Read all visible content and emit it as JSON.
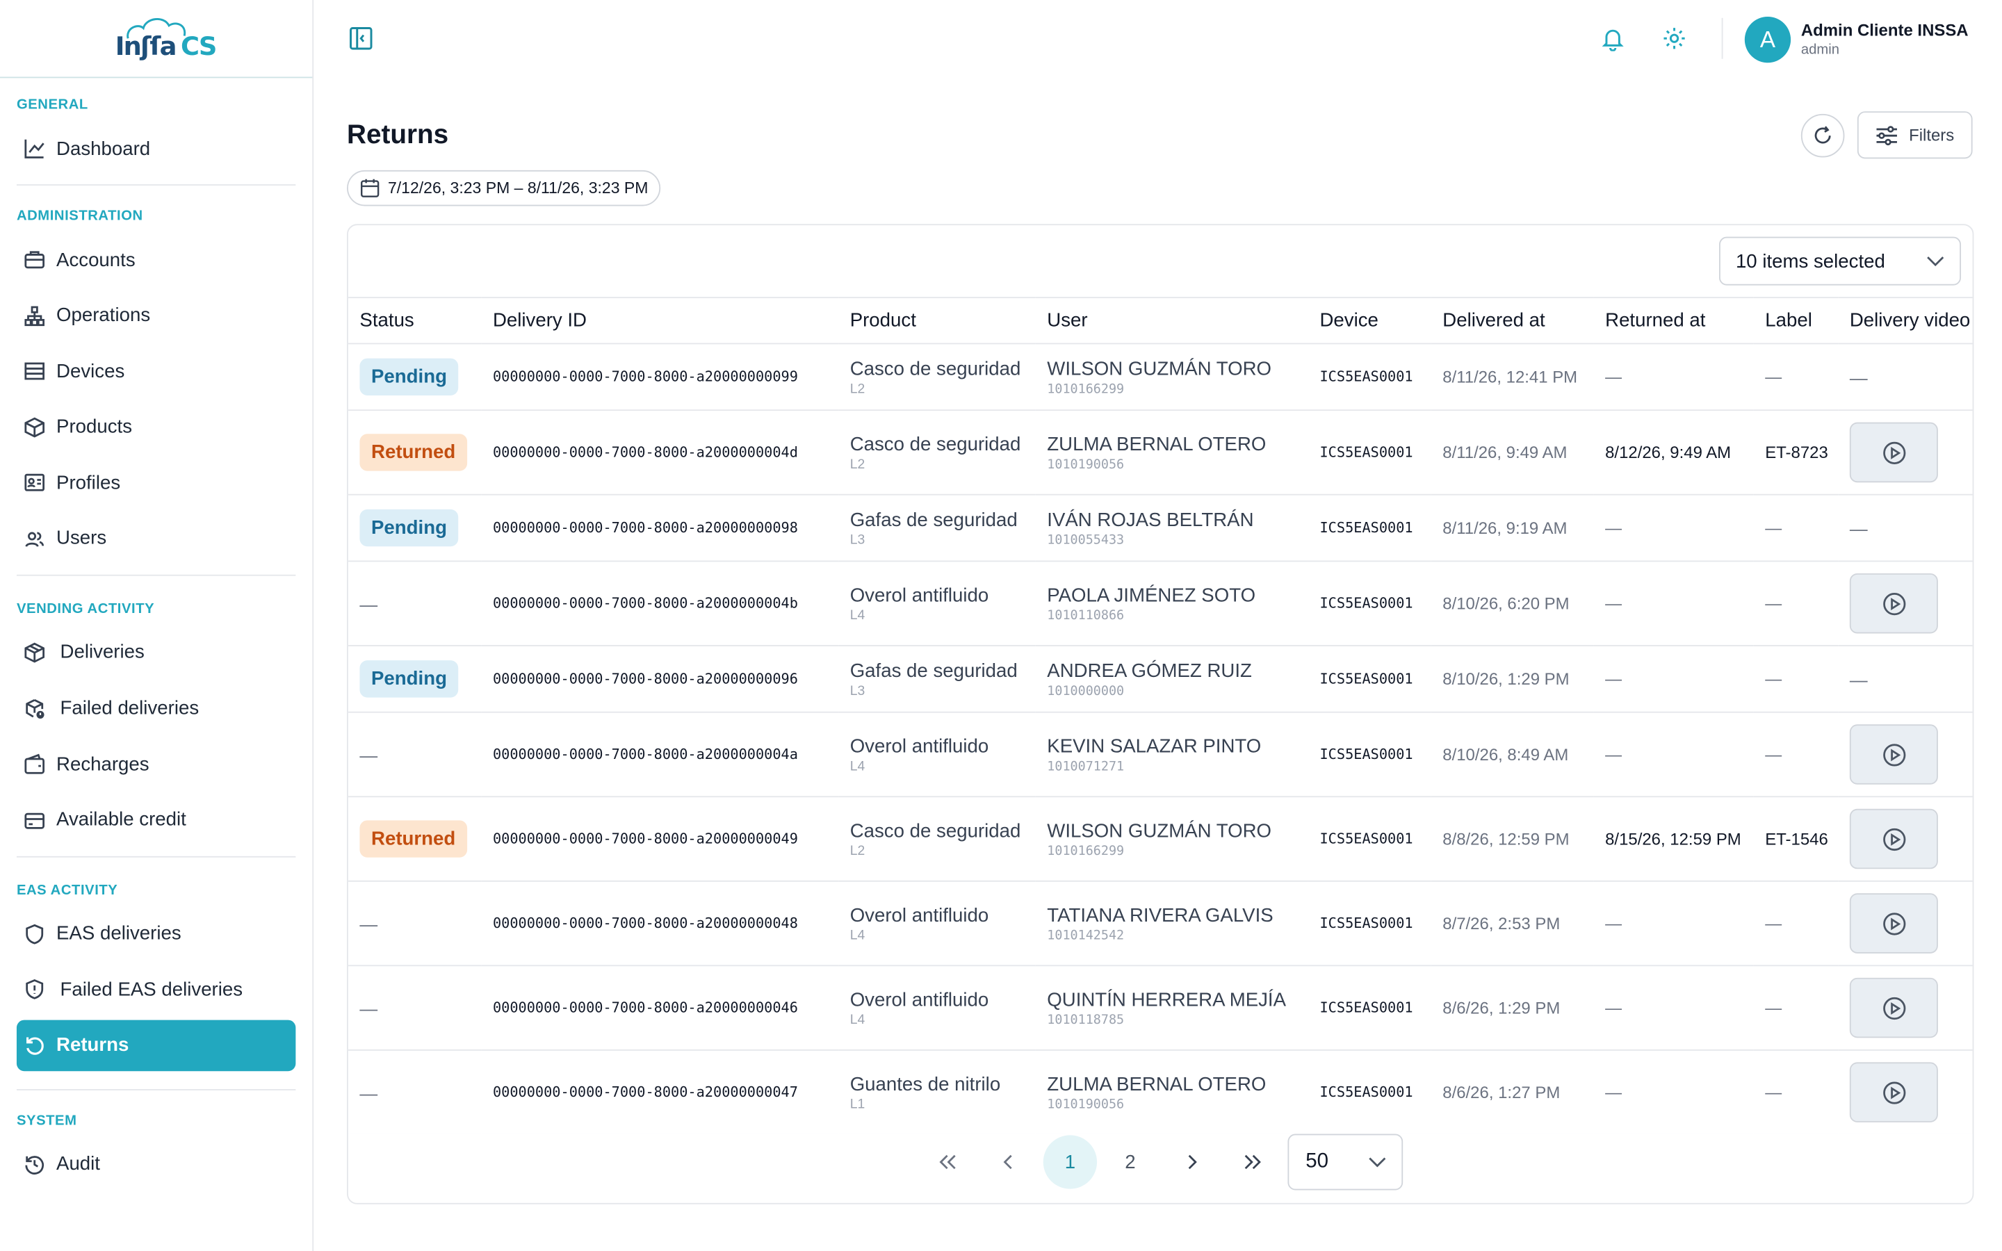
{
  "brand": {
    "logo_main": "Inʃſa",
    "logo_accent": "CS"
  },
  "sidebar": {
    "sections": [
      {
        "title": "GENERAL",
        "items": [
          {
            "label": "Dashboard",
            "icon": "chart-line-icon"
          }
        ]
      },
      {
        "title": "ADMINISTRATION",
        "items": [
          {
            "label": "Accounts",
            "icon": "briefcase-icon"
          },
          {
            "label": "Operations",
            "icon": "hierarchy-icon"
          },
          {
            "label": "Devices",
            "icon": "server-icon"
          },
          {
            "label": "Products",
            "icon": "box-icon"
          },
          {
            "label": "Profiles",
            "icon": "id-card-icon"
          },
          {
            "label": "Users",
            "icon": "users-icon"
          }
        ]
      },
      {
        "title": "VENDING ACTIVITY",
        "items": [
          {
            "label": "Deliveries",
            "icon": "package-icon"
          },
          {
            "label": "Failed deliveries",
            "icon": "package-alert-icon"
          },
          {
            "label": "Recharges",
            "icon": "wallet-icon"
          },
          {
            "label": "Available credit",
            "icon": "credit-card-icon"
          }
        ]
      },
      {
        "title": "EAS ACTIVITY",
        "items": [
          {
            "label": "EAS deliveries",
            "icon": "shield-icon"
          },
          {
            "label": "Failed EAS deliveries",
            "icon": "shield-alert-icon"
          },
          {
            "label": "Returns",
            "icon": "return-icon",
            "active": true
          }
        ]
      },
      {
        "title": "SYSTEM",
        "items": [
          {
            "label": "Audit",
            "icon": "history-icon"
          }
        ]
      }
    ]
  },
  "header": {
    "user_initial": "A",
    "user_name": "Admin Cliente INSSA",
    "user_role": "admin"
  },
  "main": {
    "title": "Returns",
    "date_range": "7/12/26, 3:23 PM – 8/11/26, 3:23 PM",
    "filters_label": "Filters",
    "columns_selected": "10 items selected",
    "columns": [
      "Status",
      "Delivery ID",
      "Product",
      "User",
      "Device",
      "Delivered at",
      "Returned at",
      "Label",
      "Delivery video"
    ],
    "rows": [
      {
        "status": "Pending",
        "status_kind": "pending",
        "id": "00000000-0000-7000-8000-a20000000099",
        "product": "Casco de seguridad",
        "size": "L2",
        "user": "WILSON GUZMÁN TORO",
        "doc": "1010166299",
        "device": "ICS5EAS0001",
        "delivered": "8/11/26, 12:41 PM",
        "returned": "—",
        "label": "—",
        "video": false,
        "video_dash": "—"
      },
      {
        "status": "Returned",
        "status_kind": "returned",
        "id": "00000000-0000-7000-8000-a2000000004d",
        "product": "Casco de seguridad",
        "size": "L2",
        "user": "ZULMA BERNAL OTERO",
        "doc": "1010190056",
        "device": "ICS5EAS0001",
        "delivered": "8/11/26, 9:49 AM",
        "returned": "8/12/26, 9:49 AM",
        "label": "ET-8723",
        "video": true
      },
      {
        "status": "Pending",
        "status_kind": "pending",
        "id": "00000000-0000-7000-8000-a20000000098",
        "product": "Gafas de seguridad",
        "size": "L3",
        "user": "IVÁN ROJAS BELTRÁN",
        "doc": "1010055433",
        "device": "ICS5EAS0001",
        "delivered": "8/11/26, 9:19 AM",
        "returned": "—",
        "label": "—",
        "video": false,
        "video_dash": "—"
      },
      {
        "status": "—",
        "status_kind": "none",
        "id": "00000000-0000-7000-8000-a2000000004b",
        "product": "Overol antifluido",
        "size": "L4",
        "user": "PAOLA JIMÉNEZ SOTO",
        "doc": "1010110866",
        "device": "ICS5EAS0001",
        "delivered": "8/10/26, 6:20 PM",
        "returned": "—",
        "label": "—",
        "video": true
      },
      {
        "status": "Pending",
        "status_kind": "pending",
        "id": "00000000-0000-7000-8000-a20000000096",
        "product": "Gafas de seguridad",
        "size": "L3",
        "user": "ANDREA GÓMEZ RUIZ",
        "doc": "1010000000",
        "device": "ICS5EAS0001",
        "delivered": "8/10/26, 1:29 PM",
        "returned": "—",
        "label": "—",
        "video": false,
        "video_dash": "—"
      },
      {
        "status": "—",
        "status_kind": "none",
        "id": "00000000-0000-7000-8000-a2000000004a",
        "product": "Overol antifluido",
        "size": "L4",
        "user": "KEVIN SALAZAR PINTO",
        "doc": "1010071271",
        "device": "ICS5EAS0001",
        "delivered": "8/10/26, 8:49 AM",
        "returned": "—",
        "label": "—",
        "video": true
      },
      {
        "status": "Returned",
        "status_kind": "returned",
        "id": "00000000-0000-7000-8000-a20000000049",
        "product": "Casco de seguridad",
        "size": "L2",
        "user": "WILSON GUZMÁN TORO",
        "doc": "1010166299",
        "device": "ICS5EAS0001",
        "delivered": "8/8/26, 12:59 PM",
        "returned": "8/15/26, 12:59 PM",
        "label": "ET-1546",
        "video": true
      },
      {
        "status": "—",
        "status_kind": "none",
        "id": "00000000-0000-7000-8000-a20000000048",
        "product": "Overol antifluido",
        "size": "L4",
        "user": "TATIANA RIVERA GALVIS",
        "doc": "1010142542",
        "device": "ICS5EAS0001",
        "delivered": "8/7/26, 2:53 PM",
        "returned": "—",
        "label": "—",
        "video": true
      },
      {
        "status": "—",
        "status_kind": "none",
        "id": "00000000-0000-7000-8000-a20000000046",
        "product": "Overol antifluido",
        "size": "L4",
        "user": "QUINTÍN HERRERA MEJÍA",
        "doc": "1010118785",
        "device": "ICS5EAS0001",
        "delivered": "8/6/26, 1:29 PM",
        "returned": "—",
        "label": "—",
        "video": true
      },
      {
        "status": "—",
        "status_kind": "none",
        "id": "00000000-0000-7000-8000-a20000000047",
        "product": "Guantes de nitrilo",
        "size": "L1",
        "user": "ZULMA BERNAL OTERO",
        "doc": "1010190056",
        "device": "ICS5EAS0001",
        "delivered": "8/6/26, 1:27 PM",
        "returned": "—",
        "label": "—",
        "video": true
      }
    ],
    "pagination": {
      "pages": [
        "1",
        "2"
      ],
      "current": "1",
      "page_size": "50"
    }
  },
  "colors": {
    "accent": "#22a8bf",
    "pending_bg": "#dceef7",
    "returned_bg": "#fde5cf"
  }
}
